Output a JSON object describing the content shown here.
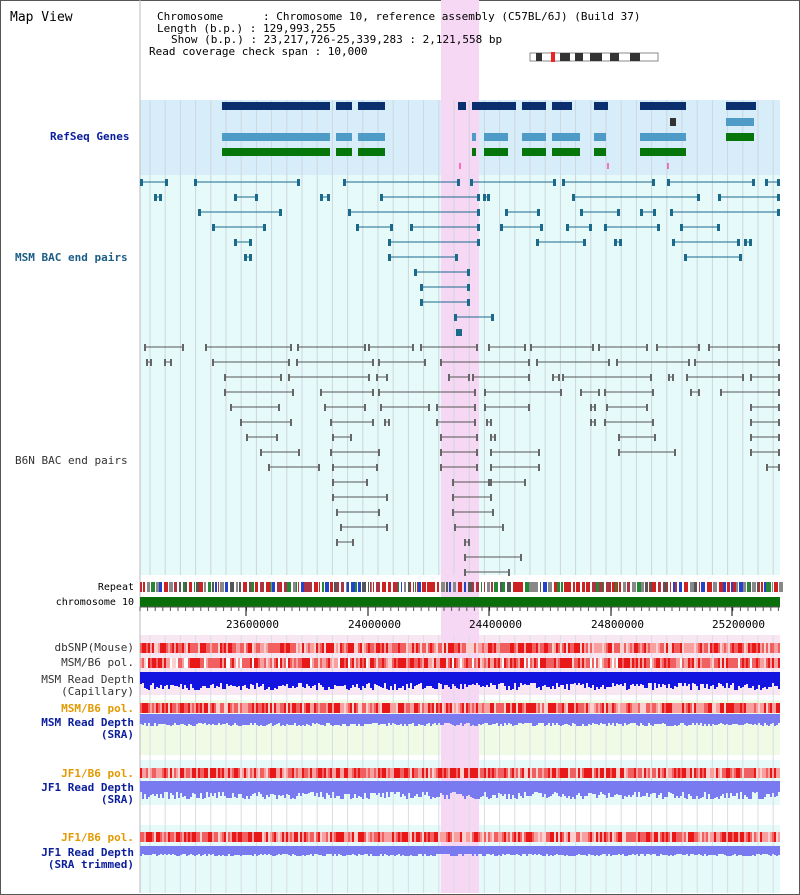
{
  "title": "Map View",
  "info": {
    "chromosome": "Chromosome      : Chromosome 10, reference assembly (C57BL/6J) (Build 37)",
    "length": "Length (b.p.) : 129,993,255",
    "show": "Show (b.p.) : 23,217,726-25,339,283 : 2,121,558 bp",
    "coverage": "Read coverage check span : 10,000"
  },
  "tracks": {
    "refseq": "RefSeq Genes",
    "msm_bac": "MSM BAC end pairs",
    "b6n_bac": "B6N BAC end pairs",
    "repeat": "Repeat",
    "chromosome": "chromosome 10",
    "dbsnp": "dbSNP(Mouse)",
    "msm_b6_pol": "MSM/B6 pol.",
    "msm_depth_cap": "MSM Read Depth",
    "msm_depth_cap2": "(Capillary)",
    "msm_b6_pol2": "MSM/B6 pol.",
    "msm_depth_sra": "MSM Read Depth",
    "msm_depth_sra2": "(SRA)",
    "jf1_pol": "JF1/B6 pol.",
    "jf1_depth": "JF1 Read Depth",
    "jf1_depth2": "(SRA)",
    "jf1_pol2": "JF1/B6 pol.",
    "jf1_depth_trim": "JF1 Read Depth",
    "jf1_depth_trim2": "(SRA trimmed)"
  },
  "scale_ticks": [
    "23600000",
    "24000000",
    "24400000",
    "24800000",
    "25200000"
  ],
  "colors": {
    "refseq_label": "#0a1d9c",
    "msm_label": "#1b5d86",
    "b6n_label": "#333333",
    "pol_label_orange": "#e29a00",
    "depth_blue": "#1414e0",
    "depth_lightblue": "#7a7af0",
    "highlight": "#f7d8f4",
    "gene_dark": "#0a2e6e",
    "gene_mid": "#4f9bc7",
    "gene_green": "#06750a"
  }
}
